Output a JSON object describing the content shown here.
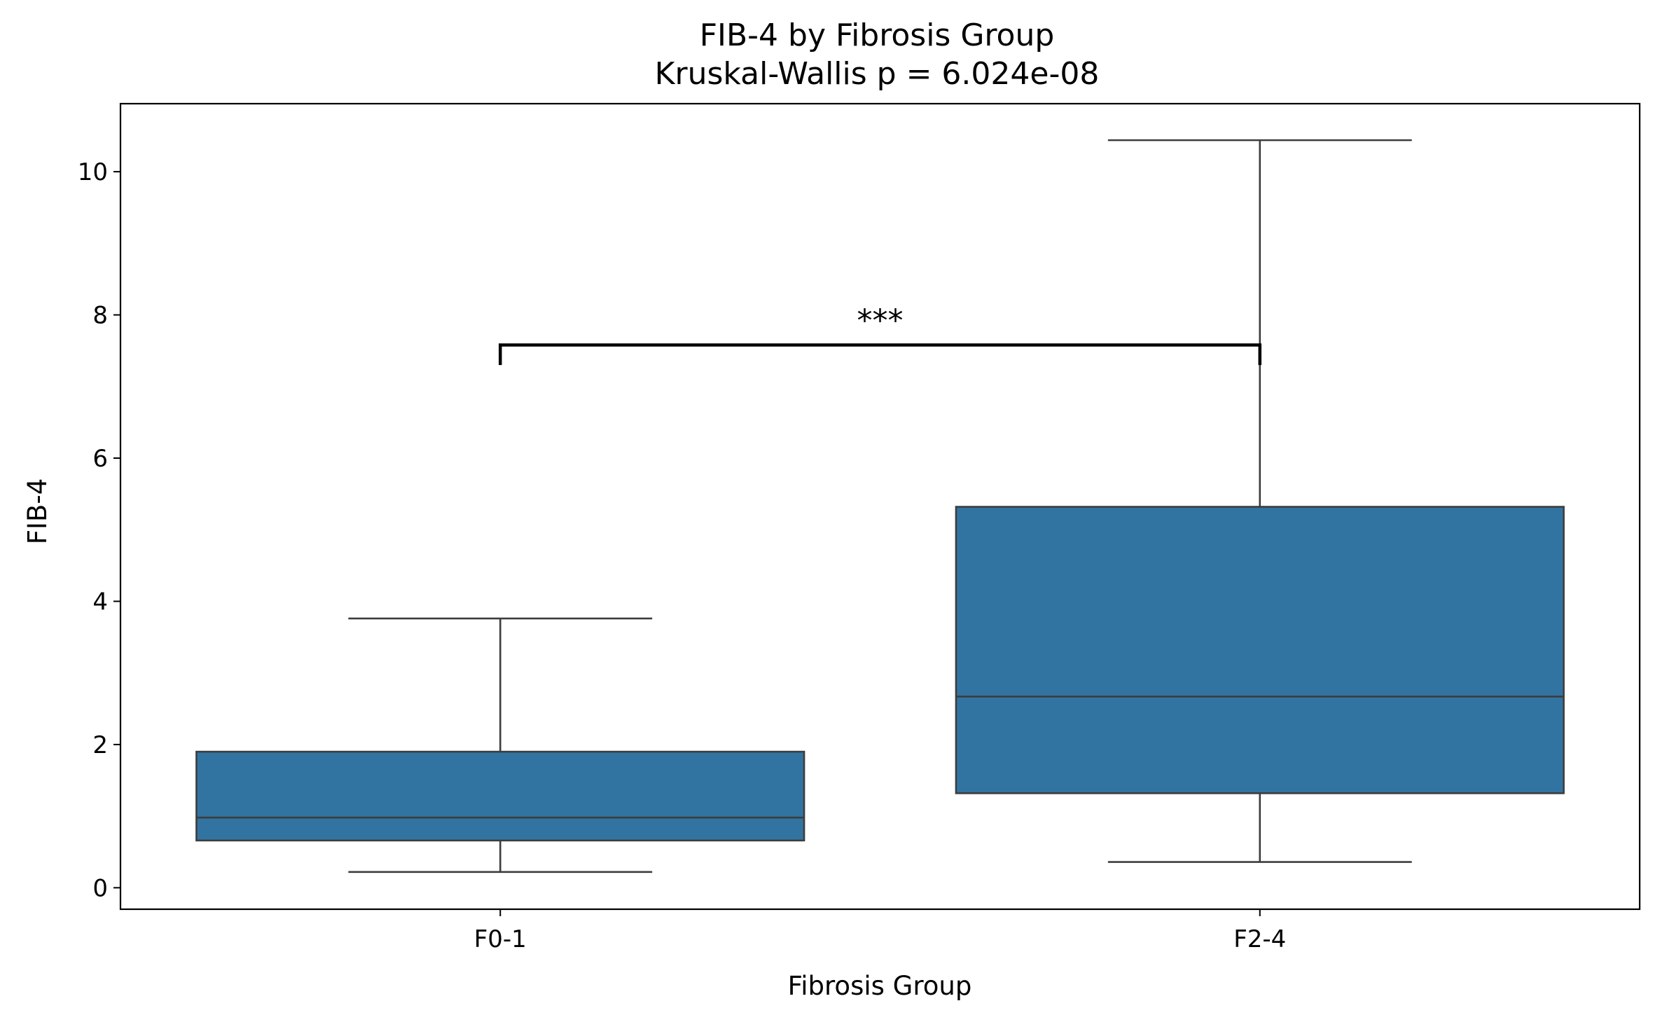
{
  "chart_data": {
    "type": "box",
    "title": "FIB-4 by Fibrosis Group",
    "subtitle": "Kruskal-Wallis p = 6.024e-08",
    "xlabel": "Fibrosis Group",
    "ylabel": "FIB-4",
    "categories": [
      "F0-1",
      "F2-4"
    ],
    "ylim": [
      -0.3,
      10.95
    ],
    "yticks": [
      0,
      2,
      4,
      6,
      8,
      10
    ],
    "yticklabels": [
      "0",
      "2",
      "4",
      "6",
      "8",
      "10"
    ],
    "box_color": "#3274a1",
    "edge_color": "#3d3d3d",
    "boxes": [
      {
        "category": "F0-1",
        "whisker_low": 0.22,
        "q1": 0.66,
        "median": 0.98,
        "q3": 1.9,
        "whisker_high": 3.76
      },
      {
        "category": "F2-4",
        "whisker_low": 0.36,
        "q1": 1.32,
        "median": 2.67,
        "q3": 5.32,
        "whisker_high": 10.44
      }
    ],
    "significance": {
      "from": "F0-1",
      "to": "F2-4",
      "label": "***",
      "y_low": 7.3,
      "y_high": 7.58
    },
    "grid": false,
    "legend": "none"
  }
}
